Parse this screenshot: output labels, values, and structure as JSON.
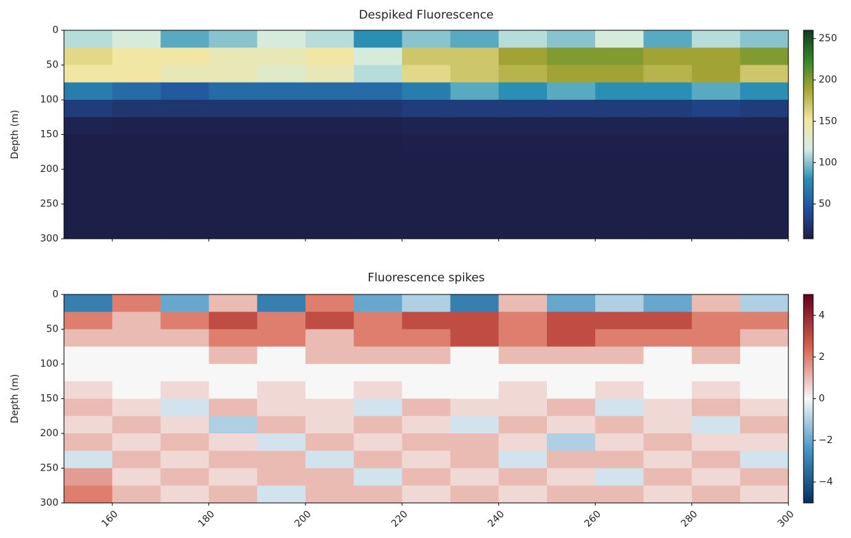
{
  "chart_data": [
    {
      "type": "heatmap",
      "title": "Despiked Fluorescence",
      "y_label": "Depth (m)",
      "xbins": [
        150,
        160,
        170,
        180,
        190,
        200,
        210,
        220,
        230,
        240,
        250,
        260,
        270,
        280,
        290,
        300
      ],
      "ybins": [
        0,
        25,
        50,
        75,
        100,
        125,
        150,
        175,
        200,
        225,
        250,
        275,
        300
      ],
      "xlim": [
        150,
        300
      ],
      "ylim": [
        300,
        0
      ],
      "yticks": [
        0,
        50,
        100,
        150,
        200,
        250,
        300
      ],
      "values": [
        [
          110,
          120,
          90,
          100,
          120,
          110,
          80,
          100,
          90,
          110,
          100,
          120,
          90,
          110,
          100
        ],
        [
          160,
          150,
          150,
          140,
          140,
          150,
          120,
          170,
          170,
          190,
          200,
          200,
          190,
          190,
          200
        ],
        [
          150,
          150,
          140,
          140,
          130,
          140,
          110,
          160,
          170,
          180,
          190,
          190,
          180,
          190,
          170
        ],
        [
          70,
          60,
          50,
          60,
          60,
          60,
          60,
          70,
          90,
          80,
          90,
          80,
          80,
          90,
          80
        ],
        [
          30,
          25,
          25,
          25,
          25,
          25,
          25,
          30,
          30,
          30,
          30,
          30,
          30,
          35,
          30
        ],
        [
          12,
          10,
          10,
          10,
          10,
          10,
          10,
          12,
          12,
          12,
          12,
          12,
          12,
          12,
          12
        ],
        [
          8,
          8,
          8,
          8,
          8,
          8,
          8,
          9,
          9,
          9,
          9,
          9,
          9,
          9,
          9
        ],
        [
          7,
          7,
          7,
          7,
          7,
          7,
          7,
          8,
          8,
          8,
          8,
          8,
          8,
          8,
          8
        ],
        [
          6,
          6,
          6,
          6,
          6,
          6,
          6,
          7,
          7,
          7,
          7,
          7,
          7,
          7,
          7
        ],
        [
          6,
          6,
          6,
          6,
          6,
          6,
          6,
          6,
          6,
          6,
          6,
          6,
          6,
          6,
          6
        ],
        [
          5,
          5,
          5,
          5,
          5,
          5,
          5,
          6,
          6,
          6,
          6,
          6,
          6,
          6,
          6
        ],
        [
          5,
          5,
          5,
          5,
          5,
          5,
          5,
          5,
          5,
          5,
          5,
          5,
          5,
          5,
          5
        ]
      ],
      "colormap": [
        "#1c1f48",
        "#224f9b",
        "#2a8fb3",
        "#d3ece3",
        "#f3e6a0",
        "#a7a635",
        "#34852a",
        "#123a20"
      ],
      "colorbar": {
        "lim": [
          8,
          260
        ],
        "ticks": [
          50,
          100,
          150,
          200,
          250
        ]
      }
    },
    {
      "type": "heatmap",
      "title": "Fluorescence spikes",
      "y_label": "Depth (m)",
      "xbins": [
        150,
        160,
        170,
        180,
        190,
        200,
        210,
        220,
        230,
        240,
        250,
        260,
        270,
        280,
        290,
        300
      ],
      "ybins": [
        0,
        25,
        50,
        75,
        100,
        125,
        150,
        175,
        200,
        225,
        250,
        275,
        300
      ],
      "xlim": [
        150,
        300
      ],
      "ylim": [
        300,
        0
      ],
      "yticks": [
        0,
        50,
        100,
        150,
        200,
        250,
        300
      ],
      "xticks": [
        160,
        180,
        200,
        220,
        240,
        260,
        280,
        300
      ],
      "values": [
        [
          -3,
          2,
          -2,
          1,
          -3,
          2,
          -2,
          -1,
          -3,
          1,
          -2,
          -1,
          -2,
          1,
          -1
        ],
        [
          2,
          1,
          2,
          3,
          2,
          3,
          2,
          3,
          3,
          2,
          3,
          3,
          3,
          2,
          2
        ],
        [
          1,
          1,
          1,
          2,
          2,
          1,
          2,
          2,
          3,
          2,
          3,
          2,
          2,
          2,
          1
        ],
        [
          0,
          0,
          0,
          1,
          0,
          1,
          1,
          1,
          0,
          1,
          1,
          1,
          0,
          1,
          0
        ],
        [
          0,
          0,
          0,
          0,
          0,
          0,
          0,
          0,
          0,
          0,
          0,
          0,
          0,
          0,
          0
        ],
        [
          0.5,
          0,
          0.5,
          0,
          0.5,
          0,
          0.5,
          0,
          0,
          0.5,
          0,
          0.5,
          0,
          0.5,
          0
        ],
        [
          1,
          0.5,
          -0.5,
          1,
          0.5,
          0.5,
          -0.5,
          1,
          0.5,
          0.5,
          1,
          -0.5,
          0.5,
          1,
          0.5
        ],
        [
          0.5,
          1,
          0.5,
          -1,
          1,
          0.5,
          1,
          0.5,
          -0.5,
          1,
          0.5,
          1,
          0.5,
          -0.5,
          1
        ],
        [
          1,
          0.5,
          1,
          0.5,
          -0.5,
          1,
          0.5,
          1,
          1,
          0.5,
          -1,
          0.5,
          1,
          0.5,
          0.5
        ],
        [
          -0.5,
          1,
          0.5,
          1,
          1,
          -0.5,
          1,
          0.5,
          1,
          -0.5,
          1,
          1,
          0.5,
          1,
          -0.5
        ],
        [
          1.5,
          0.5,
          1,
          0.5,
          1,
          1,
          -0.5,
          1,
          0.5,
          1,
          0.5,
          -0.5,
          1,
          0.5,
          1
        ],
        [
          2,
          1,
          0.5,
          1,
          -0.5,
          1,
          1,
          0.5,
          1,
          0.5,
          1,
          1,
          0.5,
          1,
          0.5
        ]
      ],
      "colormap": [
        "#053061",
        "#4393c3",
        "#f7f7f7",
        "#d6604d",
        "#67001f"
      ],
      "colorbar": {
        "lim": [
          -5,
          5
        ],
        "ticks": [
          {
            "value": -4,
            "label": "−4"
          },
          {
            "value": -2,
            "label": "−2"
          },
          0,
          2,
          4
        ]
      }
    }
  ]
}
